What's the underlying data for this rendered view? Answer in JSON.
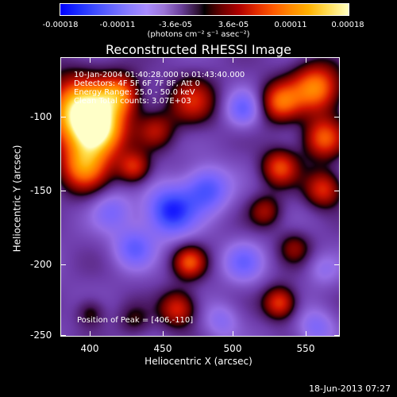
{
  "chart_data": {
    "type": "heatmap",
    "title": "Reconstructed RHESSI Image",
    "xlabel": "Heliocentric X (arcsec)",
    "ylabel": "Heliocentric Y (arcsec)",
    "xlim": [
      380,
      572
    ],
    "ylim": [
      -252,
      -60
    ],
    "x_ticks": [
      "400",
      "450",
      "500",
      "550"
    ],
    "y_ticks": [
      "-100",
      "-150",
      "-200",
      "-250"
    ],
    "colorbar": {
      "ticks": [
        "-0.00018",
        "-0.00011",
        "-3.6e-05",
        "3.6e-05",
        "0.00011",
        "0.00018"
      ],
      "units": "(photons cm⁻² s⁻¹ asec⁻²)",
      "range": [
        -0.00018,
        0.00018
      ]
    },
    "annotations": [
      "10-Jan-2004 01:40:28.000 to 01:43:40.000",
      "Detectors: 4F 5F 6F 7F 8F, Att 0",
      "Energy Range: 25.0 - 50.0 keV",
      "Clean    Total counts: 3.07E+03"
    ],
    "peak_label": "Position of Peak = [406,-110]",
    "blobs": [
      {
        "x": 392,
        "y": -95,
        "v": 0.00018,
        "s": 16
      },
      {
        "x": 405,
        "y": -110,
        "v": 0.00018,
        "s": 13
      },
      {
        "x": 395,
        "y": -135,
        "v": 0.00013,
        "s": 12
      },
      {
        "x": 420,
        "y": -85,
        "v": 0.00012,
        "s": 10
      },
      {
        "x": 430,
        "y": -135,
        "v": 0.0001,
        "s": 8
      },
      {
        "x": 470,
        "y": -90,
        "v": 9e-05,
        "s": 12
      },
      {
        "x": 445,
        "y": -110,
        "v": 7e-05,
        "s": 9
      },
      {
        "x": 530,
        "y": -90,
        "v": 0.00012,
        "s": 10
      },
      {
        "x": 555,
        "y": -80,
        "v": 0.00014,
        "s": 12
      },
      {
        "x": 560,
        "y": -115,
        "v": 0.00012,
        "s": 10
      },
      {
        "x": 530,
        "y": -135,
        "v": 0.00011,
        "s": 9
      },
      {
        "x": 560,
        "y": -150,
        "v": 0.0001,
        "s": 9
      },
      {
        "x": 520,
        "y": -165,
        "v": 7e-05,
        "s": 8
      },
      {
        "x": 540,
        "y": -190,
        "v": 6e-05,
        "s": 8
      },
      {
        "x": 468,
        "y": -200,
        "v": 0.00011,
        "s": 8
      },
      {
        "x": 460,
        "y": -232,
        "v": 0.0001,
        "s": 9
      },
      {
        "x": 530,
        "y": -228,
        "v": 0.00011,
        "s": 8
      },
      {
        "x": 430,
        "y": -240,
        "v": 4e-05,
        "s": 8
      },
      {
        "x": 400,
        "y": -235,
        "v": 5e-05,
        "s": 7
      },
      {
        "x": 455,
        "y": -165,
        "v": -0.00013,
        "s": 12
      },
      {
        "x": 480,
        "y": -150,
        "v": -0.0001,
        "s": 11
      },
      {
        "x": 430,
        "y": -190,
        "v": -8e-05,
        "s": 10
      },
      {
        "x": 505,
        "y": -95,
        "v": -8e-05,
        "s": 9
      },
      {
        "x": 505,
        "y": -200,
        "v": -7e-05,
        "s": 10
      },
      {
        "x": 555,
        "y": -245,
        "v": -6e-05,
        "s": 9
      },
      {
        "x": 415,
        "y": -165,
        "v": -6e-05,
        "s": 10
      },
      {
        "x": 490,
        "y": -240,
        "v": -5e-05,
        "s": 9
      },
      {
        "x": 560,
        "y": -205,
        "v": -4e-05,
        "s": 8
      }
    ]
  },
  "timestamp": "18-Jun-2013 07:27"
}
